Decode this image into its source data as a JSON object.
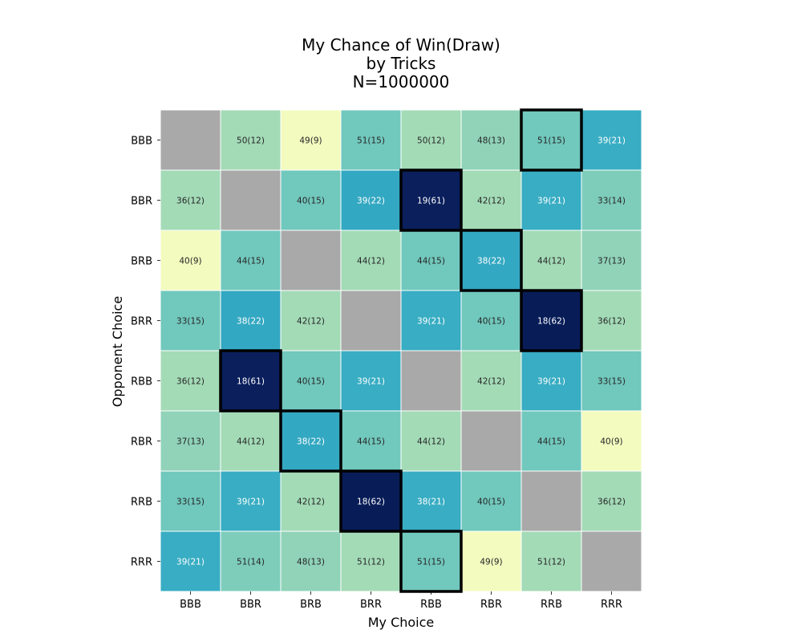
{
  "chart_data": {
    "type": "heatmap",
    "title": [
      "My Chance of Win(Draw)",
      "by Tricks",
      "N=1000000"
    ],
    "xlabel": "My Choice",
    "ylabel": "Opponent Choice",
    "x_categories": [
      "BBB",
      "BBR",
      "BRB",
      "BRR",
      "RBB",
      "RBR",
      "RRB",
      "RRR"
    ],
    "y_categories": [
      "BBB",
      "BBR",
      "BRB",
      "BRR",
      "RBB",
      "RBR",
      "RRB",
      "RRR"
    ],
    "win": [
      [
        null,
        50,
        49,
        51,
        50,
        48,
        51,
        39
      ],
      [
        36,
        null,
        40,
        39,
        19,
        42,
        39,
        33
      ],
      [
        40,
        44,
        null,
        44,
        44,
        38,
        44,
        37
      ],
      [
        33,
        38,
        42,
        null,
        39,
        40,
        18,
        36
      ],
      [
        36,
        18,
        40,
        39,
        null,
        42,
        39,
        33
      ],
      [
        37,
        44,
        38,
        44,
        44,
        null,
        44,
        40
      ],
      [
        33,
        39,
        42,
        18,
        38,
        40,
        null,
        36
      ],
      [
        39,
        51,
        48,
        51,
        51,
        49,
        51,
        null
      ]
    ],
    "draw": [
      [
        null,
        12,
        9,
        15,
        12,
        13,
        15,
        21
      ],
      [
        12,
        null,
        15,
        22,
        61,
        12,
        21,
        14
      ],
      [
        9,
        15,
        null,
        12,
        15,
        22,
        12,
        13
      ],
      [
        15,
        22,
        12,
        null,
        21,
        15,
        62,
        12
      ],
      [
        12,
        61,
        15,
        21,
        null,
        12,
        21,
        15
      ],
      [
        13,
        12,
        22,
        15,
        12,
        null,
        15,
        9
      ],
      [
        15,
        21,
        12,
        62,
        21,
        15,
        null,
        12
      ],
      [
        21,
        14,
        13,
        12,
        15,
        9,
        12,
        null
      ]
    ],
    "highlighted": [
      [
        0,
        6
      ],
      [
        1,
        4
      ],
      [
        2,
        5
      ],
      [
        3,
        6
      ],
      [
        4,
        1
      ],
      [
        5,
        2
      ],
      [
        6,
        3
      ],
      [
        7,
        4
      ]
    ],
    "colormap": "YlGnBu",
    "diagonal_color": "#a9a9a9",
    "highlight_color": "#000000"
  }
}
